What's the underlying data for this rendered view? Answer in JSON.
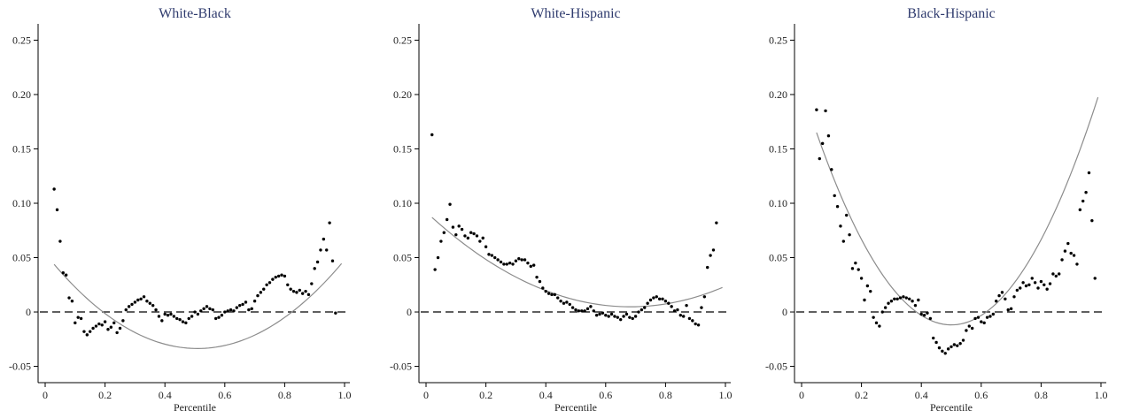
{
  "colors": {
    "title": "#2f3b6e",
    "points": "#000000",
    "fit": "#8c8c8c",
    "zero_line": "#000000"
  },
  "chart_data": [
    {
      "type": "scatter",
      "title": "White-Black",
      "xlabel": "Percentile",
      "ylabel": "",
      "xlim": [
        0,
        1.0
      ],
      "ylim": [
        -0.065,
        0.265
      ],
      "xticks": [
        {
          "v": 0,
          "label": "0"
        },
        {
          "v": 0.2,
          "label": "0.2"
        },
        {
          "v": 0.4,
          "label": "0.4"
        },
        {
          "v": 0.6,
          "label": "0.6"
        },
        {
          "v": 0.8,
          "label": "0.8"
        },
        {
          "v": 1.0,
          "label": "1.0"
        }
      ],
      "yticks": [
        {
          "v": 0.25,
          "label": "0.25"
        },
        {
          "v": 0.2,
          "label": "0.20"
        },
        {
          "v": 0.15,
          "label": "0.15"
        },
        {
          "v": 0.1,
          "label": "0.10"
        },
        {
          "v": 0.05,
          "label": "0.05"
        },
        {
          "v": 0,
          "label": "0"
        },
        {
          "v": -0.05,
          "label": "-0.05"
        }
      ],
      "reference_line": {
        "y": 0,
        "style": "dashed"
      },
      "fit": {
        "type": "quadratic",
        "x_range": [
          0.03,
          0.99
        ],
        "coefficients": [
          0.0538,
          -0.3435,
          0.3375
        ]
      },
      "points": [
        [
          0.03,
          0.113
        ],
        [
          0.04,
          0.094
        ],
        [
          0.05,
          0.065
        ],
        [
          0.06,
          0.036
        ],
        [
          0.07,
          0.034
        ],
        [
          0.08,
          0.013
        ],
        [
          0.09,
          0.01
        ],
        [
          0.1,
          -0.01
        ],
        [
          0.11,
          -0.005
        ],
        [
          0.12,
          -0.006
        ],
        [
          0.13,
          -0.018
        ],
        [
          0.14,
          -0.021
        ],
        [
          0.15,
          -0.018
        ],
        [
          0.16,
          -0.015
        ],
        [
          0.17,
          -0.013
        ],
        [
          0.18,
          -0.011
        ],
        [
          0.19,
          -0.012
        ],
        [
          0.2,
          -0.009
        ],
        [
          0.21,
          -0.016
        ],
        [
          0.22,
          -0.014
        ],
        [
          0.23,
          -0.01
        ],
        [
          0.24,
          -0.019
        ],
        [
          0.25,
          -0.015
        ],
        [
          0.26,
          -0.008
        ],
        [
          0.27,
          0.002
        ],
        [
          0.28,
          0.005
        ],
        [
          0.29,
          0.007
        ],
        [
          0.3,
          0.009
        ],
        [
          0.31,
          0.011
        ],
        [
          0.32,
          0.012
        ],
        [
          0.33,
          0.014
        ],
        [
          0.34,
          0.01
        ],
        [
          0.35,
          0.008
        ],
        [
          0.36,
          0.006
        ],
        [
          0.37,
          0.002
        ],
        [
          0.38,
          -0.004
        ],
        [
          0.39,
          -0.008
        ],
        [
          0.4,
          -0.002
        ],
        [
          0.41,
          -0.003
        ],
        [
          0.42,
          -0.002
        ],
        [
          0.43,
          -0.004
        ],
        [
          0.44,
          -0.006
        ],
        [
          0.45,
          -0.007
        ],
        [
          0.46,
          -0.009
        ],
        [
          0.47,
          -0.01
        ],
        [
          0.48,
          -0.006
        ],
        [
          0.49,
          -0.004
        ],
        [
          0.5,
          0.0
        ],
        [
          0.51,
          -0.002
        ],
        [
          0.52,
          0.001
        ],
        [
          0.53,
          0.003
        ],
        [
          0.54,
          0.005
        ],
        [
          0.55,
          0.003
        ],
        [
          0.56,
          0.002
        ],
        [
          0.57,
          -0.006
        ],
        [
          0.58,
          -0.005
        ],
        [
          0.59,
          -0.003
        ],
        [
          0.6,
          0.0
        ],
        [
          0.61,
          0.001
        ],
        [
          0.62,
          0.002
        ],
        [
          0.63,
          0.001
        ],
        [
          0.64,
          0.004
        ],
        [
          0.65,
          0.006
        ],
        [
          0.66,
          0.007
        ],
        [
          0.67,
          0.009
        ],
        [
          0.68,
          0.002
        ],
        [
          0.69,
          0.003
        ],
        [
          0.7,
          0.01
        ],
        [
          0.71,
          0.015
        ],
        [
          0.72,
          0.018
        ],
        [
          0.73,
          0.021
        ],
        [
          0.74,
          0.025
        ],
        [
          0.75,
          0.027
        ],
        [
          0.76,
          0.03
        ],
        [
          0.77,
          0.032
        ],
        [
          0.78,
          0.033
        ],
        [
          0.79,
          0.034
        ],
        [
          0.8,
          0.033
        ],
        [
          0.81,
          0.025
        ],
        [
          0.82,
          0.021
        ],
        [
          0.83,
          0.019
        ],
        [
          0.84,
          0.018
        ],
        [
          0.85,
          0.02
        ],
        [
          0.86,
          0.017
        ],
        [
          0.87,
          0.019
        ],
        [
          0.88,
          0.016
        ],
        [
          0.89,
          0.026
        ],
        [
          0.9,
          0.04
        ],
        [
          0.91,
          0.046
        ],
        [
          0.92,
          0.057
        ],
        [
          0.93,
          0.067
        ],
        [
          0.94,
          0.057
        ],
        [
          0.95,
          0.082
        ],
        [
          0.96,
          0.047
        ],
        [
          0.97,
          -0.001
        ]
      ]
    },
    {
      "type": "scatter",
      "title": "White-Hispanic",
      "xlabel": "Percentile",
      "ylabel": "",
      "xlim": [
        0,
        1.0
      ],
      "ylim": [
        -0.065,
        0.265
      ],
      "xticks": [
        {
          "v": 0,
          "label": "0"
        },
        {
          "v": 0.2,
          "label": "0.2"
        },
        {
          "v": 0.4,
          "label": "0.4"
        },
        {
          "v": 0.6,
          "label": "0.6"
        },
        {
          "v": 0.8,
          "label": "0.8"
        },
        {
          "v": 1.0,
          "label": "1.0"
        }
      ],
      "yticks": [
        {
          "v": 0.25,
          "label": "0.25"
        },
        {
          "v": 0.2,
          "label": "0.20"
        },
        {
          "v": 0.15,
          "label": "0.15"
        },
        {
          "v": 0.1,
          "label": "0.10"
        },
        {
          "v": 0.05,
          "label": "0.05"
        },
        {
          "v": 0,
          "label": "0"
        },
        {
          "v": -0.05,
          "label": "-0.05"
        }
      ],
      "reference_line": {
        "y": 0,
        "style": "dashed"
      },
      "fit": {
        "type": "quadratic",
        "x_range": [
          0.02,
          0.99
        ],
        "coefficients": [
          0.092,
          -0.2557,
          0.1874
        ]
      },
      "points": [
        [
          0.02,
          0.163
        ],
        [
          0.03,
          0.039
        ],
        [
          0.04,
          0.05
        ],
        [
          0.05,
          0.065
        ],
        [
          0.06,
          0.073
        ],
        [
          0.07,
          0.085
        ],
        [
          0.08,
          0.099
        ],
        [
          0.09,
          0.078
        ],
        [
          0.1,
          0.071
        ],
        [
          0.11,
          0.079
        ],
        [
          0.12,
          0.076
        ],
        [
          0.13,
          0.07
        ],
        [
          0.14,
          0.068
        ],
        [
          0.15,
          0.073
        ],
        [
          0.16,
          0.072
        ],
        [
          0.17,
          0.07
        ],
        [
          0.18,
          0.065
        ],
        [
          0.19,
          0.068
        ],
        [
          0.2,
          0.06
        ],
        [
          0.21,
          0.053
        ],
        [
          0.22,
          0.052
        ],
        [
          0.23,
          0.05
        ],
        [
          0.24,
          0.048
        ],
        [
          0.25,
          0.046
        ],
        [
          0.26,
          0.044
        ],
        [
          0.27,
          0.044
        ],
        [
          0.28,
          0.045
        ],
        [
          0.29,
          0.044
        ],
        [
          0.3,
          0.047
        ],
        [
          0.31,
          0.049
        ],
        [
          0.32,
          0.048
        ],
        [
          0.33,
          0.048
        ],
        [
          0.34,
          0.045
        ],
        [
          0.35,
          0.042
        ],
        [
          0.36,
          0.043
        ],
        [
          0.37,
          0.032
        ],
        [
          0.38,
          0.028
        ],
        [
          0.39,
          0.022
        ],
        [
          0.4,
          0.019
        ],
        [
          0.41,
          0.017
        ],
        [
          0.42,
          0.016
        ],
        [
          0.43,
          0.016
        ],
        [
          0.44,
          0.013
        ],
        [
          0.45,
          0.01
        ],
        [
          0.46,
          0.008
        ],
        [
          0.47,
          0.009
        ],
        [
          0.48,
          0.007
        ],
        [
          0.49,
          0.004
        ],
        [
          0.5,
          0.002
        ],
        [
          0.51,
          0.001
        ],
        [
          0.52,
          0.001
        ],
        [
          0.53,
          0.001
        ],
        [
          0.54,
          0.003
        ],
        [
          0.55,
          0.005
        ],
        [
          0.56,
          0.001
        ],
        [
          0.57,
          -0.003
        ],
        [
          0.58,
          -0.002
        ],
        [
          0.59,
          -0.001
        ],
        [
          0.6,
          -0.003
        ],
        [
          0.61,
          -0.004
        ],
        [
          0.62,
          -0.002
        ],
        [
          0.63,
          -0.004
        ],
        [
          0.64,
          -0.005
        ],
        [
          0.65,
          -0.007
        ],
        [
          0.66,
          -0.004
        ],
        [
          0.67,
          -0.002
        ],
        [
          0.68,
          -0.005
        ],
        [
          0.69,
          -0.006
        ],
        [
          0.7,
          -0.004
        ],
        [
          0.71,
          0.0
        ],
        [
          0.72,
          0.002
        ],
        [
          0.73,
          0.004
        ],
        [
          0.74,
          0.008
        ],
        [
          0.75,
          0.011
        ],
        [
          0.76,
          0.013
        ],
        [
          0.77,
          0.014
        ],
        [
          0.78,
          0.012
        ],
        [
          0.79,
          0.012
        ],
        [
          0.8,
          0.01
        ],
        [
          0.81,
          0.008
        ],
        [
          0.82,
          0.005
        ],
        [
          0.83,
          0.001
        ],
        [
          0.84,
          0.002
        ],
        [
          0.85,
          -0.003
        ],
        [
          0.86,
          -0.004
        ],
        [
          0.87,
          0.006
        ],
        [
          0.88,
          -0.006
        ],
        [
          0.89,
          -0.008
        ],
        [
          0.9,
          -0.011
        ],
        [
          0.91,
          -0.012
        ],
        [
          0.92,
          0.004
        ],
        [
          0.93,
          0.014
        ],
        [
          0.94,
          0.041
        ],
        [
          0.95,
          0.052
        ],
        [
          0.96,
          0.057
        ],
        [
          0.97,
          0.082
        ]
      ]
    },
    {
      "type": "scatter",
      "title": "Black-Hispanic",
      "xlabel": "Percentile",
      "ylabel": "",
      "xlim": [
        0,
        1.0
      ],
      "ylim": [
        -0.065,
        0.265
      ],
      "xticks": [
        {
          "v": 0,
          "label": "0"
        },
        {
          "v": 0.2,
          "label": "0.2"
        },
        {
          "v": 0.4,
          "label": "0.4"
        },
        {
          "v": 0.6,
          "label": "0.6"
        },
        {
          "v": 0.8,
          "label": "0.8"
        },
        {
          "v": 1.0,
          "label": "1.0"
        }
      ],
      "yticks": [
        {
          "v": 0.25,
          "label": "0.25"
        },
        {
          "v": 0.2,
          "label": "0.20"
        },
        {
          "v": 0.15,
          "label": "0.15"
        },
        {
          "v": 0.1,
          "label": "0.10"
        },
        {
          "v": 0.05,
          "label": "0.05"
        },
        {
          "v": 0,
          "label": "0"
        },
        {
          "v": -0.05,
          "label": "-0.05"
        }
      ],
      "reference_line": {
        "y": 0,
        "style": "dashed"
      },
      "fit": {
        "type": "quadratic",
        "x_range": [
          0.05,
          0.99
        ],
        "coefficients": [
          0.2064,
          -0.8728,
          0.8725
        ]
      },
      "points": [
        [
          0.05,
          0.186
        ],
        [
          0.06,
          0.141
        ],
        [
          0.07,
          0.155
        ],
        [
          0.08,
          0.185
        ],
        [
          0.09,
          0.162
        ],
        [
          0.1,
          0.131
        ],
        [
          0.11,
          0.107
        ],
        [
          0.12,
          0.097
        ],
        [
          0.13,
          0.079
        ],
        [
          0.14,
          0.065
        ],
        [
          0.15,
          0.089
        ],
        [
          0.16,
          0.071
        ],
        [
          0.17,
          0.04
        ],
        [
          0.18,
          0.045
        ],
        [
          0.19,
          0.039
        ],
        [
          0.2,
          0.031
        ],
        [
          0.21,
          0.011
        ],
        [
          0.22,
          0.024
        ],
        [
          0.23,
          0.019
        ],
        [
          0.24,
          -0.005
        ],
        [
          0.25,
          -0.01
        ],
        [
          0.26,
          -0.013
        ],
        [
          0.27,
          0.0
        ],
        [
          0.28,
          0.004
        ],
        [
          0.29,
          0.008
        ],
        [
          0.3,
          0.01
        ],
        [
          0.31,
          0.012
        ],
        [
          0.32,
          0.012
        ],
        [
          0.33,
          0.013
        ],
        [
          0.34,
          0.014
        ],
        [
          0.35,
          0.013
        ],
        [
          0.36,
          0.012
        ],
        [
          0.37,
          0.01
        ],
        [
          0.38,
          0.006
        ],
        [
          0.39,
          0.011
        ],
        [
          0.4,
          -0.002
        ],
        [
          0.41,
          -0.003
        ],
        [
          0.42,
          -0.001
        ],
        [
          0.43,
          -0.006
        ],
        [
          0.44,
          -0.024
        ],
        [
          0.45,
          -0.028
        ],
        [
          0.46,
          -0.033
        ],
        [
          0.47,
          -0.036
        ],
        [
          0.48,
          -0.038
        ],
        [
          0.49,
          -0.034
        ],
        [
          0.5,
          -0.032
        ],
        [
          0.51,
          -0.03
        ],
        [
          0.52,
          -0.031
        ],
        [
          0.53,
          -0.029
        ],
        [
          0.54,
          -0.026
        ],
        [
          0.55,
          -0.017
        ],
        [
          0.56,
          -0.013
        ],
        [
          0.57,
          -0.015
        ],
        [
          0.58,
          -0.006
        ],
        [
          0.59,
          -0.005
        ],
        [
          0.6,
          -0.009
        ],
        [
          0.61,
          -0.01
        ],
        [
          0.62,
          -0.005
        ],
        [
          0.63,
          -0.004
        ],
        [
          0.64,
          -0.002
        ],
        [
          0.65,
          0.01
        ],
        [
          0.66,
          0.015
        ],
        [
          0.67,
          0.018
        ],
        [
          0.68,
          0.012
        ],
        [
          0.69,
          0.002
        ],
        [
          0.7,
          0.003
        ],
        [
          0.71,
          0.014
        ],
        [
          0.72,
          0.02
        ],
        [
          0.73,
          0.022
        ],
        [
          0.74,
          0.027
        ],
        [
          0.75,
          0.024
        ],
        [
          0.76,
          0.025
        ],
        [
          0.77,
          0.031
        ],
        [
          0.78,
          0.027
        ],
        [
          0.79,
          0.022
        ],
        [
          0.8,
          0.028
        ],
        [
          0.81,
          0.025
        ],
        [
          0.82,
          0.021
        ],
        [
          0.83,
          0.026
        ],
        [
          0.84,
          0.035
        ],
        [
          0.85,
          0.033
        ],
        [
          0.86,
          0.035
        ],
        [
          0.87,
          0.048
        ],
        [
          0.88,
          0.056
        ],
        [
          0.89,
          0.063
        ],
        [
          0.9,
          0.054
        ],
        [
          0.91,
          0.052
        ],
        [
          0.92,
          0.044
        ],
        [
          0.93,
          0.094
        ],
        [
          0.94,
          0.102
        ],
        [
          0.95,
          0.11
        ],
        [
          0.96,
          0.128
        ],
        [
          0.97,
          0.084
        ],
        [
          0.98,
          0.031
        ]
      ]
    }
  ]
}
